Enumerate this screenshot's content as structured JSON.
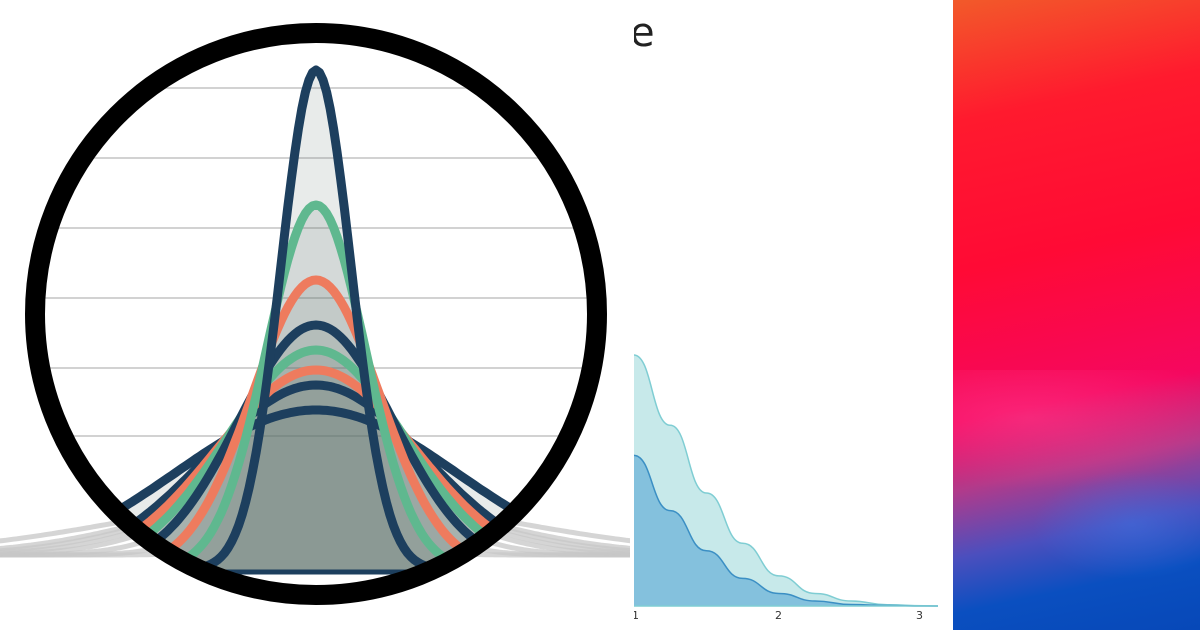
{
  "left_thumbnail": {
    "illustration": "magnifier-over-peaked-curves-icon",
    "colors": {
      "dark_blue": "#1d3f5e",
      "green": "#5fb88f",
      "salmon": "#ee7b5e",
      "gray": "#c7c7c7",
      "ring": "#000000"
    },
    "curves": [
      {
        "peak": 1.0,
        "width": 0.1,
        "color": "dark_blue"
      },
      {
        "peak": 0.73,
        "width": 0.14,
        "color": "green"
      },
      {
        "peak": 0.58,
        "width": 0.18,
        "color": "salmon"
      },
      {
        "peak": 0.49,
        "width": 0.22,
        "color": "dark_blue"
      },
      {
        "peak": 0.44,
        "width": 0.25,
        "color": "green"
      },
      {
        "peak": 0.4,
        "width": 0.28,
        "color": "salmon"
      },
      {
        "peak": 0.37,
        "width": 0.31,
        "color": "dark_blue"
      },
      {
        "peak": 0.32,
        "width": 0.4,
        "color": "dark_blue"
      }
    ]
  },
  "middle_thumbnail": {
    "title_fragment": "e",
    "colors": {
      "upper_fill": "#c7e9ea",
      "upper_line": "#7fcdd3",
      "lower_fill": "#84c1dd",
      "lower_line": "#3b8fc4"
    },
    "chart_data": {
      "type": "area",
      "xlim": [
        1,
        3.1
      ],
      "ticks": [
        "1",
        "2",
        "3"
      ],
      "series": [
        {
          "values": [
            [
              1.0,
              1.0
            ],
            [
              1.25,
              0.72
            ],
            [
              1.5,
              0.45
            ],
            [
              1.75,
              0.25
            ],
            [
              2.0,
              0.12
            ],
            [
              2.25,
              0.05
            ],
            [
              2.5,
              0.02
            ],
            [
              2.75,
              0.005
            ],
            [
              3.0,
              0.001
            ],
            [
              3.1,
              0.0
            ]
          ]
        },
        {
          "values": [
            [
              1.0,
              0.6
            ],
            [
              1.25,
              0.38
            ],
            [
              1.5,
              0.22
            ],
            [
              1.75,
              0.11
            ],
            [
              2.0,
              0.05
            ],
            [
              2.25,
              0.02
            ],
            [
              2.5,
              0.006
            ],
            [
              2.75,
              0.002
            ],
            [
              3.0,
              0.0
            ],
            [
              3.1,
              0.0
            ]
          ]
        }
      ]
    }
  },
  "right_thumbnail": {
    "illustration": "abstract-red-blue-gradient",
    "colors": {
      "top": "#f25a2a",
      "mid": "#ff0a35",
      "pink": "#f5075f",
      "bottom": "#0748b8"
    }
  }
}
